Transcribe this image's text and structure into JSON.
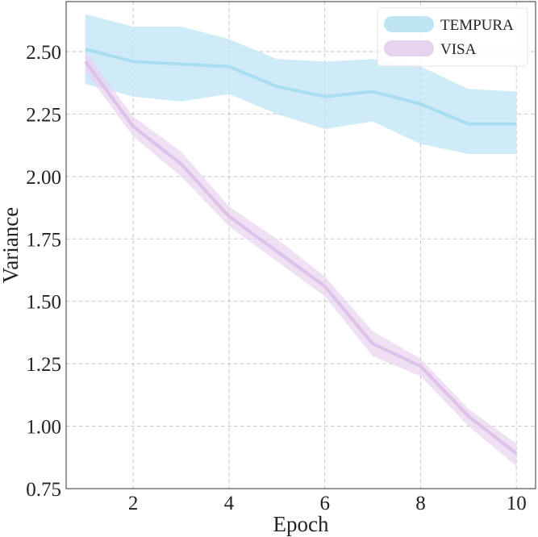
{
  "chart_data": {
    "type": "line",
    "title": "",
    "xlabel": "Epoch",
    "ylabel": "Variance",
    "xlim": [
      0.6,
      10.4
    ],
    "ylim": [
      0.75,
      2.7
    ],
    "xticks": [
      2,
      4,
      6,
      8,
      10
    ],
    "xtick_labels": [
      "2",
      "4",
      "6",
      "8",
      "10"
    ],
    "yticks": [
      0.75,
      1.0,
      1.25,
      1.5,
      1.75,
      2.0,
      2.25,
      2.5
    ],
    "ytick_labels": [
      "0.75",
      "1.00",
      "1.25",
      "1.50",
      "1.75",
      "2.00",
      "2.25",
      "2.50"
    ],
    "grid": true,
    "legend_position": "top-right",
    "series": [
      {
        "name": "TEMPURA",
        "color": "#bfe4f4",
        "line_color": "#a6dcf0",
        "x": [
          1,
          2,
          3,
          4,
          5,
          6,
          7,
          8,
          9,
          10
        ],
        "mean": [
          2.51,
          2.46,
          2.45,
          2.44,
          2.36,
          2.32,
          2.34,
          2.29,
          2.21,
          2.21
        ],
        "upper": [
          2.65,
          2.6,
          2.6,
          2.55,
          2.47,
          2.46,
          2.47,
          2.44,
          2.35,
          2.34
        ],
        "lower": [
          2.37,
          2.32,
          2.3,
          2.33,
          2.25,
          2.19,
          2.22,
          2.13,
          2.09,
          2.09
        ]
      },
      {
        "name": "VISA",
        "color": "#e8d3ef",
        "line_color": "#dcc0e8",
        "x": [
          1,
          2,
          3,
          4,
          5,
          6,
          7,
          8,
          9,
          10
        ],
        "mean": [
          2.46,
          2.2,
          2.05,
          1.84,
          1.7,
          1.56,
          1.33,
          1.24,
          1.04,
          0.89
        ],
        "upper": [
          2.5,
          2.24,
          2.1,
          1.88,
          1.75,
          1.6,
          1.38,
          1.27,
          1.07,
          0.93
        ],
        "lower": [
          2.42,
          2.16,
          2.0,
          1.8,
          1.66,
          1.52,
          1.28,
          1.2,
          1.0,
          0.84
        ]
      }
    ]
  }
}
